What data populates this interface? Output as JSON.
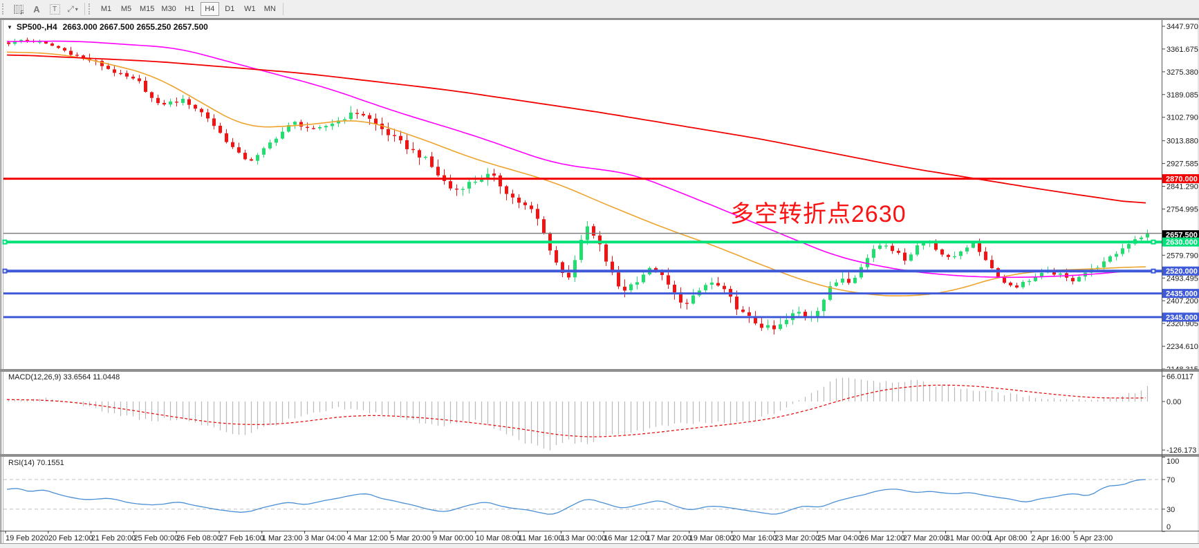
{
  "window": {
    "title": {
      "expander": "▼",
      "symbol": "SP500-,H4",
      "ohlc_text": "2663.000 2667.500 2655.250 2657.500"
    }
  },
  "toolbar": {
    "icons": [
      {
        "name": "chart-grid-icon",
        "label": "F"
      },
      {
        "name": "font-a-icon",
        "label": "A"
      },
      {
        "name": "text-label-icon",
        "label": "T"
      },
      {
        "name": "trade-arrows-icon",
        "label": "⤢"
      },
      {
        "name": "dropdown-caret-icon",
        "label": "▾"
      }
    ],
    "timeframes": [
      "M1",
      "M5",
      "M15",
      "M30",
      "H1",
      "H4",
      "D1",
      "W1",
      "MN"
    ],
    "active_timeframe": "H4"
  },
  "annotation": {
    "text": "多空转折点2630",
    "color": "#fb1212"
  },
  "macd_panel": {
    "label": "MACD(12,26,9) 33.6564 11.0448"
  },
  "rsi_panel": {
    "label": "RSI(14) 70.1551"
  },
  "chart_data": {
    "type": "candlestick",
    "symbol": "SP500-",
    "timeframe": "H4",
    "ohlc": {
      "open": 2663.0,
      "high": 2667.5,
      "low": 2655.25,
      "close": 2657.5
    },
    "price_axis": {
      "min": 2148.315,
      "max": 3447.97,
      "ticks": [
        "3447.970",
        "3361.675",
        "3275.380",
        "3189.085",
        "3102.790",
        "3013.880",
        "2927.585",
        "2841.290",
        "2754.995",
        "2579.790",
        "2493.495",
        "2407.200",
        "2320.905",
        "2234.610",
        "2148.315"
      ]
    },
    "current_price": {
      "value": "2657.500",
      "price": 2657.5,
      "badge_bg": "#000000",
      "badge_fg": "#ffffff"
    },
    "price_lines": [
      {
        "price": 2870.0,
        "label": "2870.000",
        "color": "#f30000",
        "width": 3,
        "badge": true,
        "handles": false
      },
      {
        "price": 2663.0,
        "label": "",
        "color": "#808080",
        "width": 1.5,
        "badge": false,
        "handles": false
      },
      {
        "price": 2630.0,
        "label": "2630.000",
        "color": "#00e17a",
        "width": 4,
        "badge": true,
        "handles": true
      },
      {
        "price": 2520.0,
        "label": "2520.000",
        "color": "#3f5ad9",
        "width": 4,
        "badge": true,
        "handles": true
      },
      {
        "price": 2435.0,
        "label": "2435.000",
        "color": "#3f5ad9",
        "width": 3,
        "badge": true,
        "handles": false
      },
      {
        "price": 2345.0,
        "label": "2345.000",
        "color": "#3f5ad9",
        "width": 3,
        "badge": true,
        "handles": false
      }
    ],
    "candles": {
      "count": 184,
      "up_color": "#23dd70",
      "down_color": "#f01414",
      "close_anchors": [
        [
          0.0,
          3383
        ],
        [
          0.01,
          3396
        ],
        [
          0.025,
          3390
        ],
        [
          0.04,
          3372
        ],
        [
          0.058,
          3340
        ],
        [
          0.077,
          3310
        ],
        [
          0.096,
          3268
        ],
        [
          0.115,
          3235
        ],
        [
          0.13,
          3150
        ],
        [
          0.154,
          3168
        ],
        [
          0.173,
          3110
        ],
        [
          0.192,
          3010
        ],
        [
          0.205,
          2950
        ],
        [
          0.215,
          2940
        ],
        [
          0.231,
          3012
        ],
        [
          0.25,
          3085
        ],
        [
          0.269,
          3052
        ],
        [
          0.288,
          3088
        ],
        [
          0.308,
          3125
        ],
        [
          0.327,
          3060
        ],
        [
          0.346,
          3000
        ],
        [
          0.365,
          2948
        ],
        [
          0.378,
          2880
        ],
        [
          0.39,
          2825
        ],
        [
          0.404,
          2852
        ],
        [
          0.423,
          2885
        ],
        [
          0.442,
          2800
        ],
        [
          0.462,
          2740
        ],
        [
          0.48,
          2560
        ],
        [
          0.49,
          2482
        ],
        [
          0.5,
          2598
        ],
        [
          0.508,
          2688
        ],
        [
          0.519,
          2615
        ],
        [
          0.529,
          2515
        ],
        [
          0.538,
          2442
        ],
        [
          0.548,
          2472
        ],
        [
          0.558,
          2512
        ],
        [
          0.567,
          2532
        ],
        [
          0.577,
          2478
        ],
        [
          0.587,
          2420
        ],
        [
          0.596,
          2392
        ],
        [
          0.606,
          2442
        ],
        [
          0.615,
          2478
        ],
        [
          0.625,
          2458
        ],
        [
          0.635,
          2408
        ],
        [
          0.644,
          2360
        ],
        [
          0.654,
          2330
        ],
        [
          0.663,
          2308
        ],
        [
          0.673,
          2296
        ],
        [
          0.683,
          2332
        ],
        [
          0.692,
          2368
        ],
        [
          0.702,
          2342
        ],
        [
          0.712,
          2385
        ],
        [
          0.721,
          2452
        ],
        [
          0.731,
          2498
        ],
        [
          0.74,
          2482
        ],
        [
          0.75,
          2542
        ],
        [
          0.76,
          2608
        ],
        [
          0.769,
          2628
        ],
        [
          0.779,
          2590
        ],
        [
          0.788,
          2562
        ],
        [
          0.798,
          2618
        ],
        [
          0.808,
          2638
        ],
        [
          0.817,
          2592
        ],
        [
          0.827,
          2562
        ],
        [
          0.837,
          2602
        ],
        [
          0.846,
          2625
        ],
        [
          0.856,
          2578
        ],
        [
          0.865,
          2520
        ],
        [
          0.875,
          2472
        ],
        [
          0.885,
          2462
        ],
        [
          0.894,
          2482
        ],
        [
          0.904,
          2502
        ],
        [
          0.913,
          2518
        ],
        [
          0.923,
          2505
        ],
        [
          0.933,
          2482
        ],
        [
          0.942,
          2508
        ],
        [
          0.952,
          2528
        ],
        [
          0.962,
          2552
        ],
        [
          0.975,
          2595
        ],
        [
          0.988,
          2642
        ],
        [
          1.0,
          2657.5
        ]
      ]
    },
    "moving_averages": [
      {
        "name": "ma-fast-orange",
        "color": "#eea32c",
        "width": 1.6,
        "points": [
          [
            0.0,
            3352
          ],
          [
            0.05,
            3342
          ],
          [
            0.09,
            3305
          ],
          [
            0.13,
            3260
          ],
          [
            0.16,
            3185
          ],
          [
            0.21,
            3062
          ],
          [
            0.26,
            3072
          ],
          [
            0.31,
            3098
          ],
          [
            0.36,
            3028
          ],
          [
            0.41,
            2945
          ],
          [
            0.48,
            2858
          ],
          [
            0.53,
            2765
          ],
          [
            0.58,
            2678
          ],
          [
            0.62,
            2618
          ],
          [
            0.67,
            2530
          ],
          [
            0.71,
            2468
          ],
          [
            0.75,
            2432
          ],
          [
            0.79,
            2422
          ],
          [
            0.83,
            2442
          ],
          [
            0.87,
            2498
          ],
          [
            0.91,
            2522
          ],
          [
            0.95,
            2527
          ],
          [
            1.0,
            2538
          ]
        ]
      },
      {
        "name": "ma-mid-magenta",
        "color": "#ff00ff",
        "width": 1.6,
        "points": [
          [
            0.0,
            3390
          ],
          [
            0.06,
            3392
          ],
          [
            0.15,
            3366
          ],
          [
            0.21,
            3296
          ],
          [
            0.28,
            3216
          ],
          [
            0.34,
            3126
          ],
          [
            0.41,
            3034
          ],
          [
            0.48,
            2928
          ],
          [
            0.55,
            2888
          ],
          [
            0.62,
            2768
          ],
          [
            0.68,
            2660
          ],
          [
            0.73,
            2572
          ],
          [
            0.78,
            2526
          ],
          [
            0.82,
            2506
          ],
          [
            0.86,
            2496
          ],
          [
            0.9,
            2496
          ],
          [
            0.95,
            2506
          ],
          [
            1.0,
            2526
          ]
        ]
      },
      {
        "name": "ma-slow-red",
        "color": "#f30000",
        "width": 1.8,
        "points": [
          [
            0.0,
            3341
          ],
          [
            0.13,
            3315
          ],
          [
            0.26,
            3270
          ],
          [
            0.39,
            3205
          ],
          [
            0.52,
            3122
          ],
          [
            0.66,
            3022
          ],
          [
            0.79,
            2912
          ],
          [
            0.92,
            2822
          ],
          [
            1.0,
            2772
          ]
        ]
      }
    ],
    "macd": {
      "hist_color": "#b9b9b9",
      "signal_color": "#e80f0f",
      "axis_ticks": [
        {
          "value": 66.0117,
          "label": "66.0117"
        },
        {
          "value": 0,
          "label": "0.00"
        },
        {
          "value": -126.173,
          "label": "-126.173"
        }
      ],
      "hist_anchors": [
        [
          0.0,
          4
        ],
        [
          0.03,
          9
        ],
        [
          0.06,
          -6
        ],
        [
          0.09,
          -28
        ],
        [
          0.12,
          -50
        ],
        [
          0.15,
          -45
        ],
        [
          0.18,
          -70
        ],
        [
          0.205,
          -88
        ],
        [
          0.23,
          -62
        ],
        [
          0.26,
          -38
        ],
        [
          0.29,
          -18
        ],
        [
          0.32,
          -28
        ],
        [
          0.35,
          -48
        ],
        [
          0.38,
          -62
        ],
        [
          0.41,
          -50
        ],
        [
          0.44,
          -88
        ],
        [
          0.465,
          -120
        ],
        [
          0.475,
          -126.17
        ],
        [
          0.49,
          -100
        ],
        [
          0.505,
          -112
        ],
        [
          0.52,
          -95
        ],
        [
          0.55,
          -78
        ],
        [
          0.58,
          -62
        ],
        [
          0.61,
          -55
        ],
        [
          0.635,
          -58
        ],
        [
          0.66,
          -45
        ],
        [
          0.68,
          -20
        ],
        [
          0.7,
          12
        ],
        [
          0.715,
          40
        ],
        [
          0.73,
          66.01
        ],
        [
          0.75,
          58
        ],
        [
          0.77,
          52
        ],
        [
          0.79,
          55
        ],
        [
          0.81,
          45
        ],
        [
          0.83,
          38
        ],
        [
          0.85,
          30
        ],
        [
          0.87,
          22
        ],
        [
          0.89,
          14
        ],
        [
          0.91,
          9
        ],
        [
          0.93,
          6
        ],
        [
          0.95,
          5
        ],
        [
          0.97,
          10
        ],
        [
          0.985,
          20
        ],
        [
          1.0,
          36
        ]
      ],
      "signal_anchors": [
        [
          0.0,
          6
        ],
        [
          0.05,
          2
        ],
        [
          0.1,
          -18
        ],
        [
          0.15,
          -42
        ],
        [
          0.2,
          -62
        ],
        [
          0.25,
          -58
        ],
        [
          0.3,
          -35
        ],
        [
          0.35,
          -38
        ],
        [
          0.4,
          -52
        ],
        [
          0.45,
          -70
        ],
        [
          0.5,
          -95
        ],
        [
          0.55,
          -88
        ],
        [
          0.6,
          -70
        ],
        [
          0.65,
          -55
        ],
        [
          0.69,
          -35
        ],
        [
          0.72,
          -8
        ],
        [
          0.75,
          20
        ],
        [
          0.79,
          40
        ],
        [
          0.83,
          45
        ],
        [
          0.86,
          38
        ],
        [
          0.89,
          28
        ],
        [
          0.92,
          18
        ],
        [
          0.95,
          10
        ],
        [
          0.97,
          7
        ],
        [
          1.0,
          11.04
        ]
      ]
    },
    "rsi": {
      "line_color": "#4a8fd6",
      "level_color": "#c0c0c0",
      "levels": [
        70,
        30
      ],
      "axis_ticks": [
        {
          "value": 100,
          "label": "100"
        },
        {
          "value": 70,
          "label": "70"
        },
        {
          "value": 30,
          "label": "30"
        },
        {
          "value": 0,
          "label": "0"
        }
      ],
      "points": [
        [
          0.0,
          55
        ],
        [
          0.01,
          60
        ],
        [
          0.02,
          52
        ],
        [
          0.03,
          57
        ],
        [
          0.05,
          48
        ],
        [
          0.07,
          42
        ],
        [
          0.09,
          45
        ],
        [
          0.11,
          38
        ],
        [
          0.13,
          35
        ],
        [
          0.15,
          40
        ],
        [
          0.17,
          33
        ],
        [
          0.19,
          28
        ],
        [
          0.21,
          25
        ],
        [
          0.225,
          32
        ],
        [
          0.245,
          40
        ],
        [
          0.26,
          36
        ],
        [
          0.28,
          42
        ],
        [
          0.3,
          48
        ],
        [
          0.315,
          52
        ],
        [
          0.33,
          44
        ],
        [
          0.35,
          38
        ],
        [
          0.37,
          30
        ],
        [
          0.385,
          26
        ],
        [
          0.4,
          33
        ],
        [
          0.42,
          40
        ],
        [
          0.44,
          32
        ],
        [
          0.46,
          28
        ],
        [
          0.48,
          22
        ],
        [
          0.5,
          38
        ],
        [
          0.51,
          45
        ],
        [
          0.53,
          35
        ],
        [
          0.54,
          30
        ],
        [
          0.56,
          38
        ],
        [
          0.575,
          42
        ],
        [
          0.59,
          32
        ],
        [
          0.6,
          28
        ],
        [
          0.615,
          35
        ],
        [
          0.63,
          33
        ],
        [
          0.65,
          28
        ],
        [
          0.665,
          24
        ],
        [
          0.675,
          22
        ],
        [
          0.69,
          30
        ],
        [
          0.7,
          35
        ],
        [
          0.715,
          32
        ],
        [
          0.73,
          42
        ],
        [
          0.75,
          48
        ],
        [
          0.765,
          55
        ],
        [
          0.78,
          58
        ],
        [
          0.8,
          52
        ],
        [
          0.81,
          55
        ],
        [
          0.83,
          50
        ],
        [
          0.845,
          53
        ],
        [
          0.86,
          48
        ],
        [
          0.875,
          45
        ],
        [
          0.885,
          43
        ],
        [
          0.894,
          39
        ],
        [
          0.91,
          45
        ],
        [
          0.925,
          48
        ],
        [
          0.939,
          52
        ],
        [
          0.95,
          46
        ],
        [
          0.963,
          60
        ],
        [
          0.972,
          63
        ],
        [
          0.978,
          60
        ],
        [
          0.988,
          69
        ],
        [
          1.0,
          70.15
        ]
      ]
    },
    "time_axis": {
      "labels": [
        "19 Feb 2020",
        "20 Feb 12:00",
        "21 Feb 20:00",
        "25 Feb 00:00",
        "26 Feb 08:00",
        "27 Feb 16:00",
        "1 Mar 23:00",
        "3 Mar 04:00",
        "4 Mar 12:00",
        "5 Mar 20:00",
        "9 Mar 00:00",
        "10 Mar 08:00",
        "11 Mar 16:00",
        "13 Mar 00:00",
        "16 Mar 12:00",
        "17 Mar 20:00",
        "19 Mar 08:00",
        "20 Mar 16:00",
        "23 Mar 20:00",
        "25 Mar 04:00",
        "26 Mar 12:00",
        "27 Mar 20:00",
        "31 Mar 00:00",
        "1 Apr 08:00",
        "2 Apr 16:00",
        "5 Apr 23:00"
      ]
    }
  }
}
